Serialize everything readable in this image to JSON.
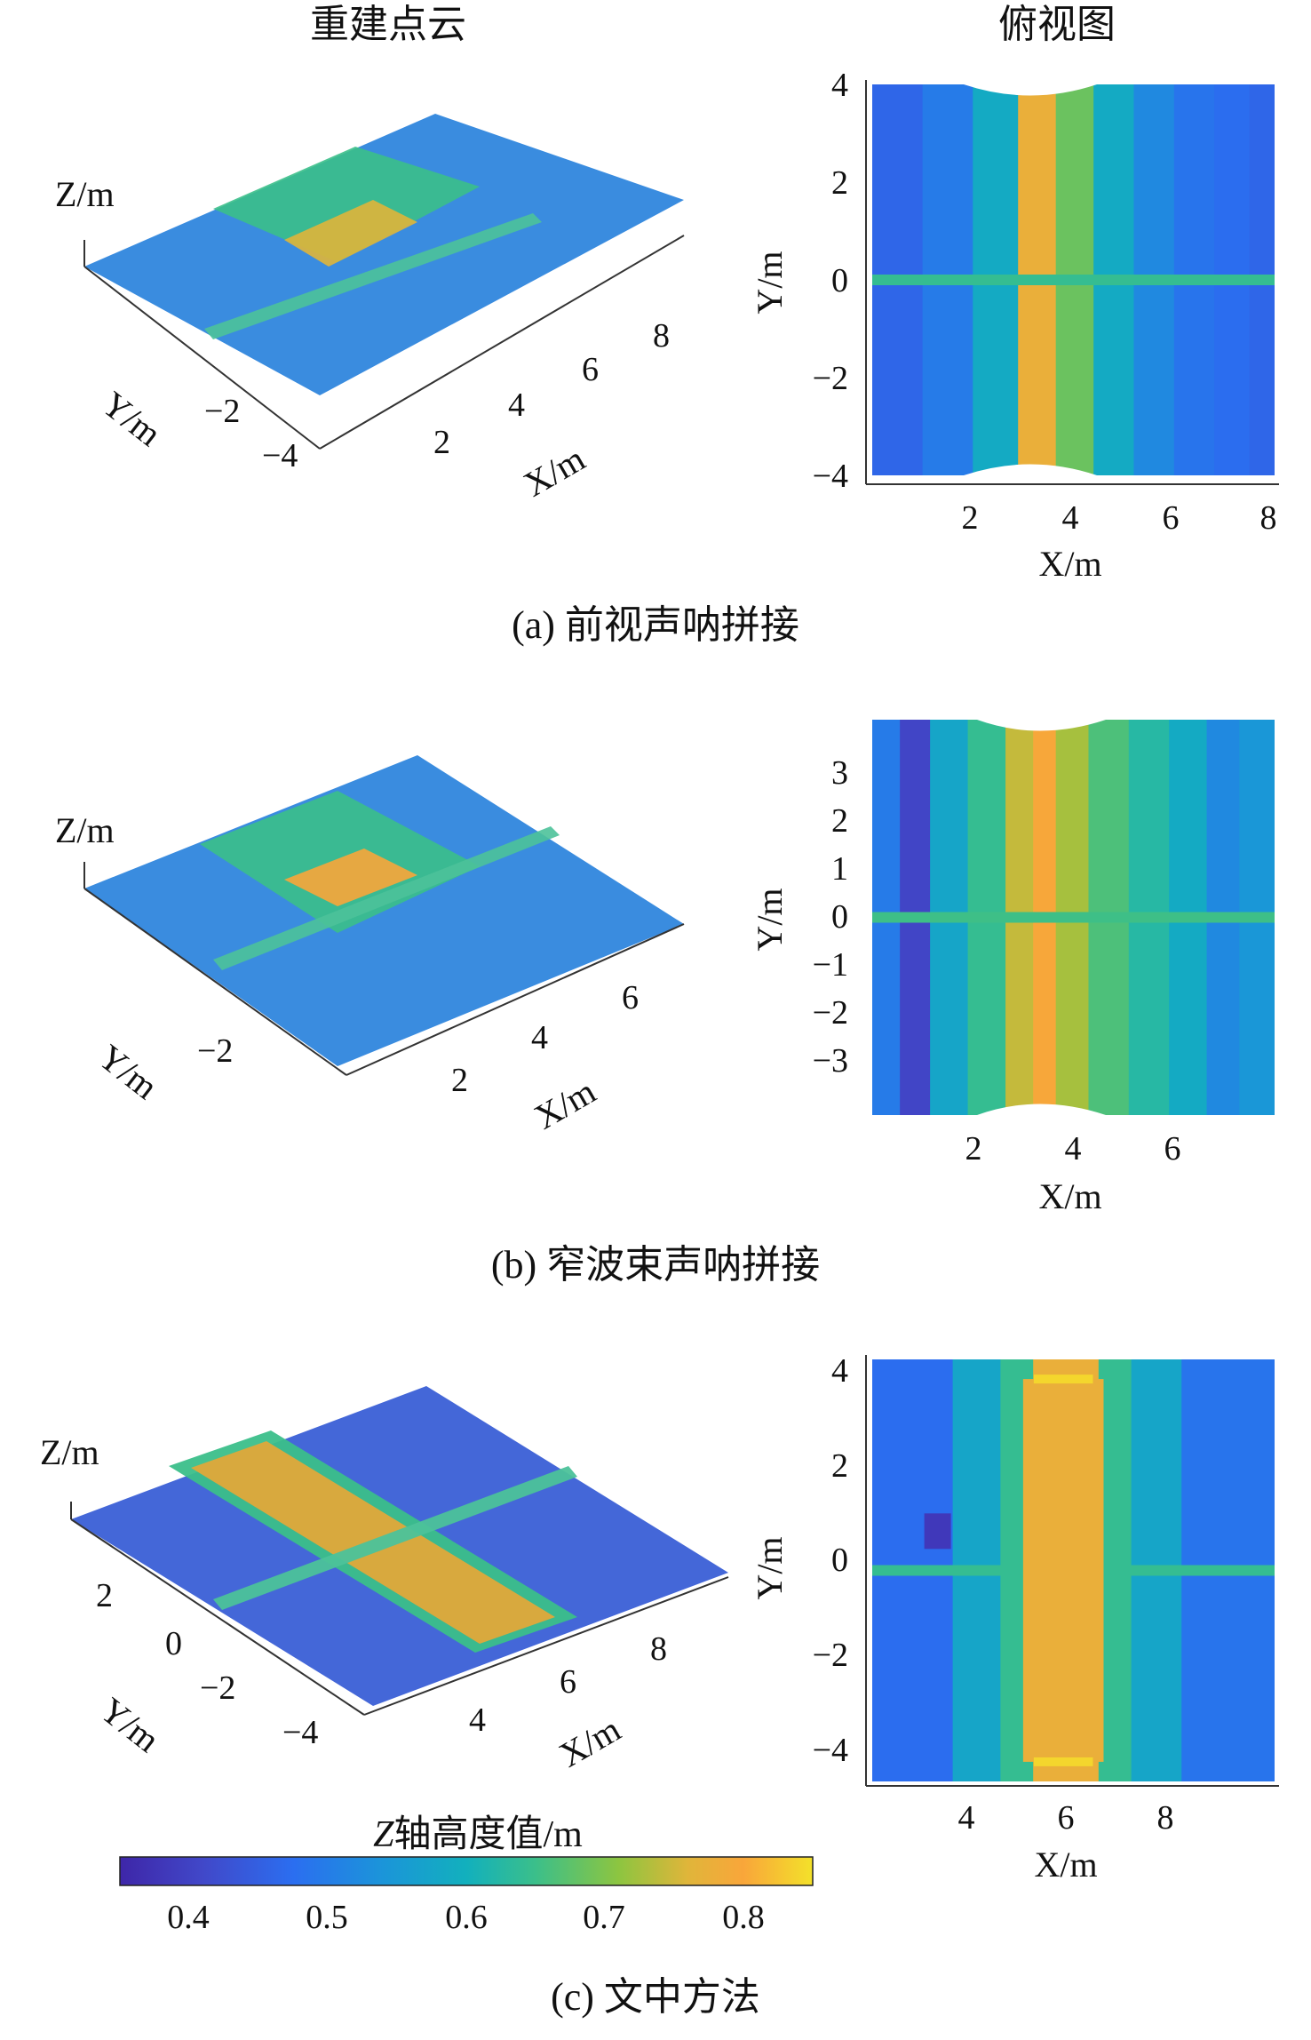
{
  "headers": {
    "left": "重建点云",
    "right": "俯视图"
  },
  "colors": {
    "viridis_stops": [
      "#3e26a8",
      "#4148c9",
      "#2b6ef0",
      "#1b95d9",
      "#12b0bd",
      "#3bbf8a",
      "#8dc540",
      "#e0b53a",
      "#f9a63a",
      "#f3e12a"
    ],
    "axis": "#222222"
  },
  "colorbar": {
    "title_italic": "Z",
    "title_rest": "轴高度值/m",
    "range": [
      0.35,
      0.85
    ],
    "ticks": [
      "0.4",
      "0.5",
      "0.6",
      "0.7",
      "0.8"
    ]
  },
  "panels": [
    {
      "caption": "(a) 前视声呐拼接",
      "view3d": {
        "z_label": "Z/m",
        "y_label": "Y/m",
        "x_label": "X/m",
        "y_ticks": [
          "−2",
          "−4"
        ],
        "x_ticks": [
          "2",
          "4",
          "6",
          "8"
        ]
      },
      "top": {
        "x_label": "X/m",
        "y_label": "Y/m",
        "x_ticks": [
          "2",
          "4",
          "6",
          "8"
        ],
        "y_ticks": [
          "4",
          "2",
          "0",
          "−2",
          "−4"
        ]
      }
    },
    {
      "caption": "(b) 窄波束声呐拼接",
      "view3d": {
        "z_label": "Z/m",
        "y_label": "Y/m",
        "x_label": "X/m",
        "y_ticks": [
          "−2"
        ],
        "x_ticks": [
          "2",
          "4",
          "6"
        ]
      },
      "top": {
        "x_label": "X/m",
        "y_label": "Y/m",
        "x_ticks": [
          "2",
          "4",
          "6"
        ],
        "y_ticks": [
          "3",
          "2",
          "1",
          "0",
          "−1",
          "−2",
          "−3"
        ]
      }
    },
    {
      "caption": "(c) 文中方法",
      "view3d": {
        "z_label": "Z/m",
        "y_label": "Y/m",
        "x_label": "X/m",
        "y_ticks": [
          "2",
          "0",
          "−2",
          "−4"
        ],
        "x_ticks": [
          "4",
          "6",
          "8"
        ]
      },
      "top": {
        "x_label": "X/m",
        "y_label": "Y/m",
        "x_ticks": [
          "4",
          "6",
          "8"
        ],
        "y_ticks": [
          "4",
          "2",
          "0",
          "−2",
          "−4"
        ]
      }
    }
  ],
  "chart_data": [
    {
      "type": "heatmap",
      "title": "(a) 前视声呐拼接 — 俯视图",
      "xlabel": "X/m",
      "ylabel": "Y/m",
      "xlim": [
        0,
        8
      ],
      "ylim": [
        -4,
        4
      ],
      "colorbar_range": [
        0.35,
        0.85
      ],
      "x": [
        0.5,
        1.5,
        2.5,
        3.3,
        4.0,
        4.8,
        5.6,
        6.4,
        7.2,
        7.8
      ],
      "values_along_x": [
        0.45,
        0.48,
        0.56,
        0.76,
        0.66,
        0.56,
        0.5,
        0.47,
        0.46,
        0.45
      ],
      "features": [
        {
          "kind": "pipe_along_x",
          "y": 0,
          "value": 0.62
        }
      ]
    },
    {
      "type": "heatmap",
      "title": "(b) 窄波束声呐拼接 — 俯视图",
      "xlabel": "X/m",
      "ylabel": "Y/m",
      "xlim": [
        0,
        8
      ],
      "ylim": [
        -4,
        4
      ],
      "colorbar_range": [
        0.35,
        0.85
      ],
      "x": [
        0.3,
        0.8,
        1.5,
        2.3,
        3.0,
        3.4,
        3.9,
        4.7,
        5.5,
        6.3,
        7.0,
        7.6
      ],
      "values_along_x": [
        0.48,
        0.4,
        0.55,
        0.62,
        0.72,
        0.79,
        0.7,
        0.64,
        0.6,
        0.56,
        0.5,
        0.52
      ],
      "features": [
        {
          "kind": "pipe_along_x",
          "y": 0,
          "value": 0.63
        }
      ]
    },
    {
      "type": "heatmap",
      "title": "(c) 文中方法 — 俯视图",
      "xlabel": "X/m",
      "ylabel": "Y/m",
      "xlim": [
        2,
        10
      ],
      "ylim": [
        -4.3,
        4.3
      ],
      "colorbar_range": [
        0.35,
        0.85
      ],
      "x": [
        3.0,
        4.2,
        4.9,
        5.5,
        6.2,
        6.8,
        7.5,
        8.8
      ],
      "values_along_x": [
        0.46,
        0.55,
        0.62,
        0.76,
        0.76,
        0.62,
        0.55,
        0.47
      ],
      "features": [
        {
          "kind": "pipe_along_x",
          "y": 0,
          "value": 0.62
        },
        {
          "kind": "band_along_y",
          "x": [
            5,
            6.6
          ],
          "value": 0.76
        },
        {
          "kind": "end_caps",
          "y": [
            -3.9,
            3.9
          ],
          "value": 0.84
        },
        {
          "kind": "depression",
          "x": 3.3,
          "y": 0.8,
          "value": 0.38
        }
      ]
    }
  ]
}
